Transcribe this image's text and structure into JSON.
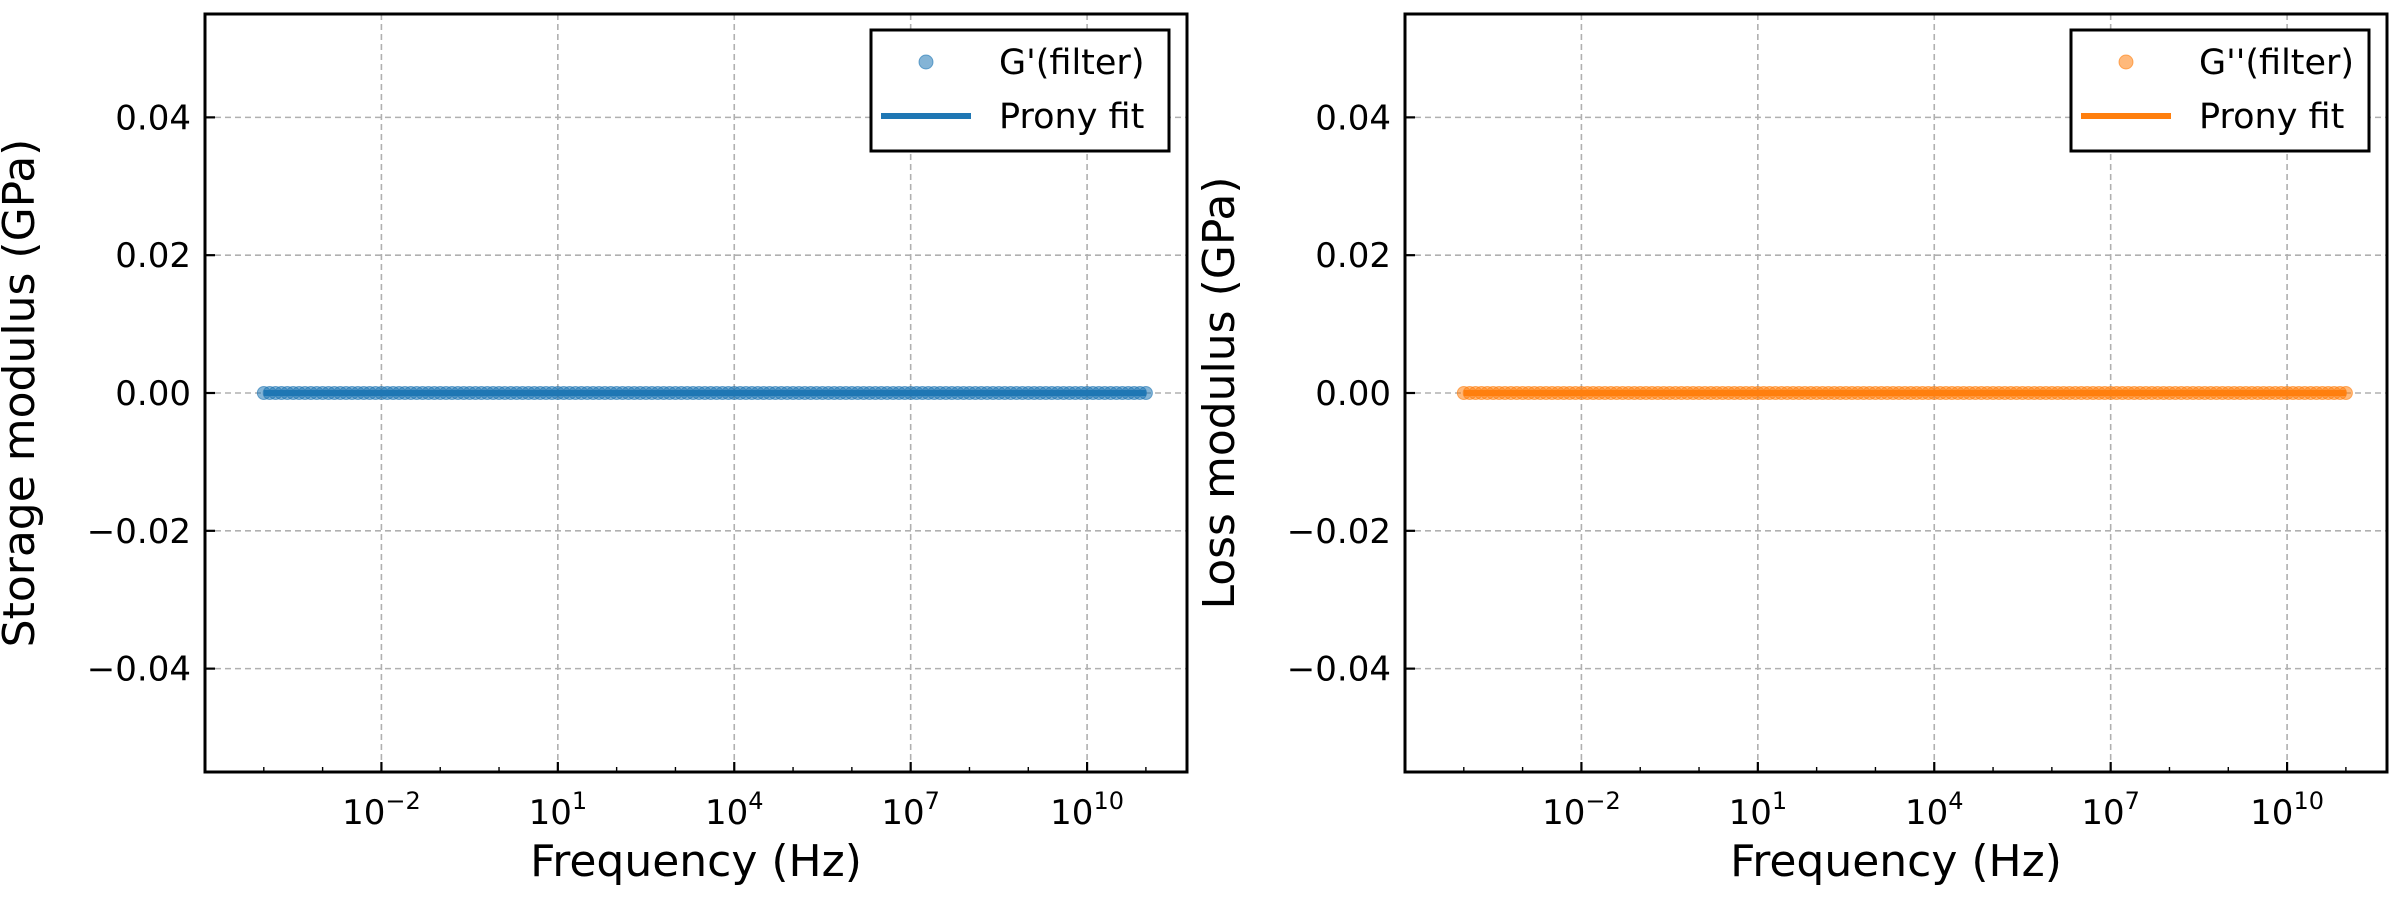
{
  "colors": {
    "storage": "#1f77b4",
    "loss": "#ff7f0e",
    "grid": "#b0b0b0",
    "axes": "#000000"
  },
  "chart_data": [
    {
      "type": "scatter",
      "x_scale": "log",
      "xlabel": "Frequency (Hz)",
      "ylabel": "Storage modulus (GPa)",
      "xlim": [
        1e-05,
        500000000000
      ],
      "ylim": [
        -0.055,
        0.055
      ],
      "xticks": [
        0.01,
        10,
        10000,
        10000000,
        10000000000
      ],
      "xtick_labels": [
        {
          "base": "10",
          "exp": "−2"
        },
        {
          "base": "10",
          "exp": "1"
        },
        {
          "base": "10",
          "exp": "4"
        },
        {
          "base": "10",
          "exp": "7"
        },
        {
          "base": "10",
          "exp": "10"
        }
      ],
      "yticks": [
        0.04,
        0.02,
        0.0,
        -0.02,
        -0.04
      ],
      "ytick_labels": [
        "0.04",
        "0.02",
        "0.00",
        "−0.02",
        "−0.04"
      ],
      "grid": true,
      "legend_position": "top-right",
      "series": [
        {
          "name": "G'(filter)",
          "kind": "markers",
          "color": "#1f77b4",
          "x_range": [
            0.0001,
            100000000000
          ],
          "points_per_decade": 10,
          "y": 0.0
        },
        {
          "name": "Prony fit",
          "kind": "line",
          "color": "#1f77b4",
          "x_range": [
            0.0001,
            100000000000
          ],
          "y": 0.0
        }
      ]
    },
    {
      "type": "scatter",
      "x_scale": "log",
      "xlabel": "Frequency (Hz)",
      "ylabel": "Loss modulus (GPa)",
      "xlim": [
        1e-05,
        500000000000
      ],
      "ylim": [
        -0.055,
        0.055
      ],
      "xticks": [
        0.01,
        10,
        10000,
        10000000,
        10000000000
      ],
      "xtick_labels": [
        {
          "base": "10",
          "exp": "−2"
        },
        {
          "base": "10",
          "exp": "1"
        },
        {
          "base": "10",
          "exp": "4"
        },
        {
          "base": "10",
          "exp": "7"
        },
        {
          "base": "10",
          "exp": "10"
        }
      ],
      "yticks": [
        0.04,
        0.02,
        0.0,
        -0.02,
        -0.04
      ],
      "ytick_labels": [
        "0.04",
        "0.02",
        "0.00",
        "−0.02",
        "−0.04"
      ],
      "grid": true,
      "legend_position": "top-right",
      "series": [
        {
          "name": "G''(filter)",
          "kind": "markers",
          "color": "#ff7f0e",
          "x_range": [
            0.0001,
            100000000000
          ],
          "points_per_decade": 10,
          "y": 0.0
        },
        {
          "name": "Prony fit",
          "kind": "line",
          "color": "#ff7f0e",
          "x_range": [
            0.0001,
            100000000000
          ],
          "y": 0.0
        }
      ]
    }
  ]
}
